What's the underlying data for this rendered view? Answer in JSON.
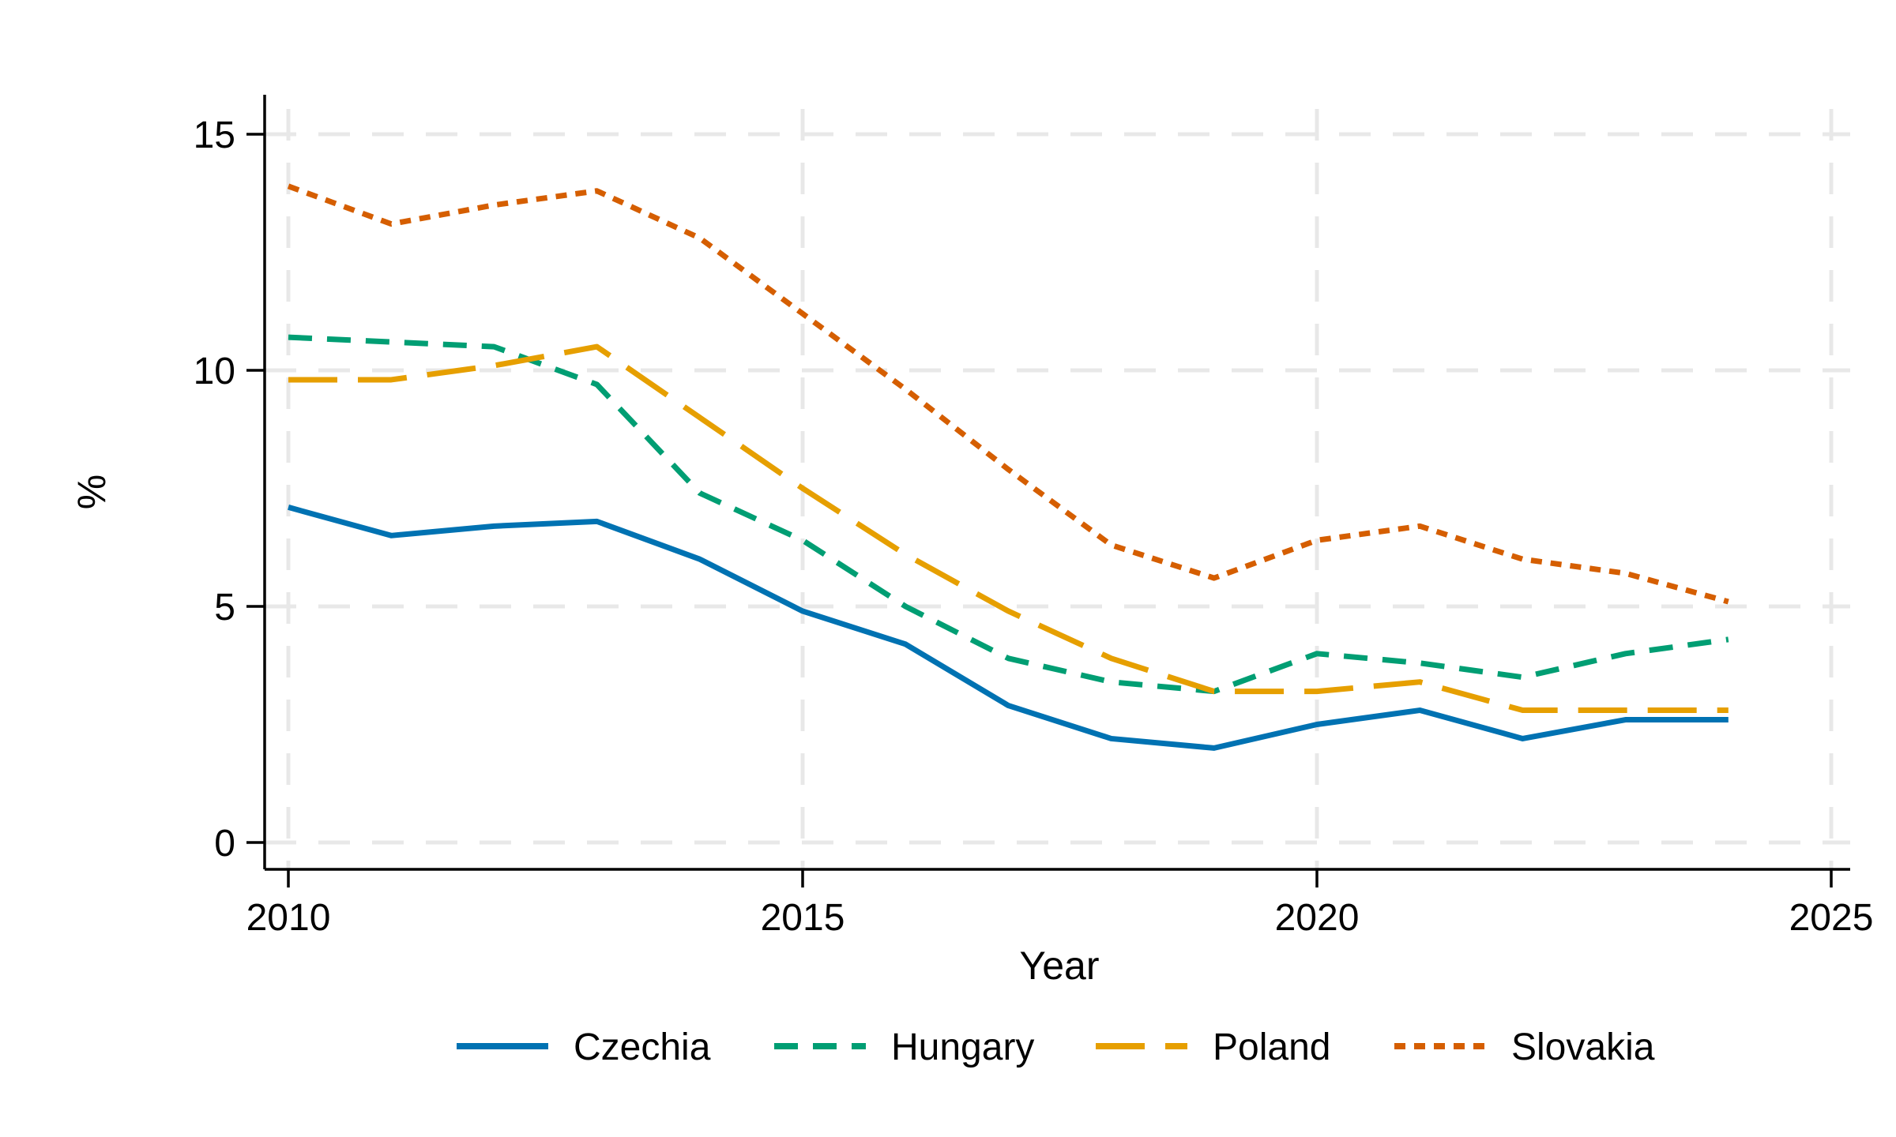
{
  "chart_data": {
    "type": "line",
    "title": "",
    "xlabel": "Year",
    "ylabel": "%",
    "x": [
      2010,
      2011,
      2012,
      2013,
      2014,
      2015,
      2016,
      2017,
      2018,
      2019,
      2020,
      2021,
      2022,
      2023,
      2024
    ],
    "series": [
      {
        "name": "Czechia",
        "color": "#0072B2",
        "linestyle": "solid",
        "values": [
          7.1,
          6.5,
          6.7,
          6.8,
          6.0,
          4.9,
          4.2,
          2.9,
          2.2,
          2.0,
          2.5,
          2.8,
          2.2,
          2.6,
          2.6
        ]
      },
      {
        "name": "Hungary",
        "color": "#009E73",
        "linestyle": "dashed",
        "values": [
          10.7,
          10.6,
          10.5,
          9.7,
          7.4,
          6.4,
          5.0,
          3.9,
          3.4,
          3.2,
          4.0,
          3.8,
          3.5,
          4.0,
          4.3
        ]
      },
      {
        "name": "Poland",
        "color": "#E69F00",
        "linestyle": "longdash",
        "values": [
          9.8,
          9.8,
          10.1,
          10.5,
          9.0,
          7.5,
          6.1,
          4.9,
          3.9,
          3.2,
          3.2,
          3.4,
          2.8,
          2.8,
          2.8
        ]
      },
      {
        "name": "Slovakia",
        "color": "#D55E00",
        "linestyle": "dotted",
        "values": [
          13.9,
          13.1,
          13.5,
          13.8,
          12.8,
          11.2,
          9.6,
          7.9,
          6.3,
          5.6,
          6.4,
          6.7,
          6.0,
          5.7,
          5.1
        ]
      }
    ],
    "xticks": [
      2010,
      2015,
      2020,
      2025
    ],
    "yticks": [
      0,
      5,
      10,
      15
    ],
    "xlim": [
      2009.77,
      2025.18
    ],
    "ylim": [
      -0.57,
      15.84
    ],
    "grid": true,
    "gridline_color": "#e8e8e8",
    "axis_color": "#000000",
    "legend_position": "bottom"
  }
}
